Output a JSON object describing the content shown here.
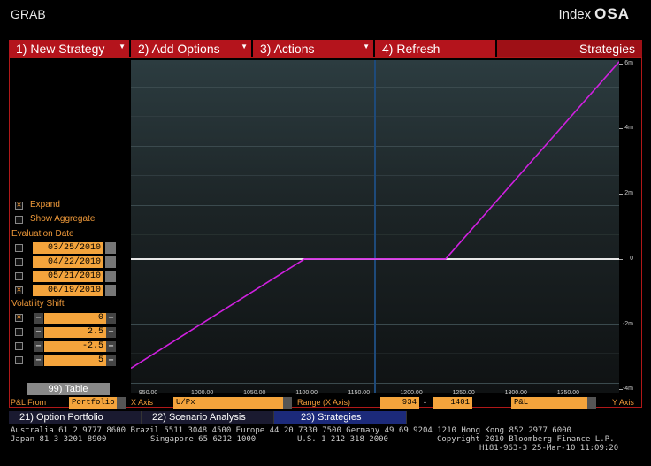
{
  "header": {
    "ticker": "GRAB",
    "index_label": "Index",
    "function_code": "OSA"
  },
  "menu": [
    {
      "label": "1)  New Strategy",
      "dropdown": true
    },
    {
      "label": "2)  Add Options",
      "dropdown": true
    },
    {
      "label": "3)  Actions",
      "dropdown": true
    },
    {
      "label": "4)  Refresh",
      "dropdown": false
    },
    {
      "label": "Strategies",
      "dropdown": false
    }
  ],
  "options": {
    "expand_label": "Expand",
    "expand_checked": true,
    "aggregate_label": "Show Aggregate",
    "aggregate_checked": false
  },
  "evaluation": {
    "title": "Evaluation Date",
    "dates": [
      {
        "value": "03/25/2010",
        "checked": false
      },
      {
        "value": "04/22/2010",
        "checked": false
      },
      {
        "value": "05/21/2010",
        "checked": false
      },
      {
        "value": "06/19/2010",
        "checked": true
      }
    ]
  },
  "volatility": {
    "title": "Volatility Shift",
    "shifts": [
      {
        "value": "0",
        "checked": true
      },
      {
        "value": "2.5",
        "checked": false
      },
      {
        "value": "-2.5",
        "checked": false
      },
      {
        "value": "5",
        "checked": false
      }
    ]
  },
  "table_button": "99) Table",
  "bottom": {
    "pl_from_label": "P&L From",
    "pl_from_value": "Portfolio",
    "xaxis_label": "X Axis",
    "xaxis_value": "U/Px",
    "range_label": "Range (X Axis)",
    "range_min": "934",
    "range_sep": "-",
    "range_max": "1401",
    "yaxis_value": "P&L",
    "yaxis_label": "Y Axis"
  },
  "tabs": [
    {
      "label": "21) Option Portfolio",
      "active": false
    },
    {
      "label": "22) Scenario Analysis",
      "active": false
    },
    {
      "label": "23) Strategies",
      "active": true
    }
  ],
  "footer": {
    "line1": "Australia 61 2 9777 8600 Brazil 5511 3048 4500 Europe 44 20 7330 7500 Germany 49 69 9204 1210 Hong Kong 852 2977 6000",
    "line2a": "Japan 81 3 3201 8900",
    "line2b": "Singapore 65 6212 1000",
    "line2c": "U.S. 1 212 318 2000",
    "line2d": "Copyright 2010 Bloomberg Finance L.P.",
    "line3": "H181-963-3 25-Mar-10 11:09:20"
  },
  "chart_data": {
    "type": "line",
    "title": "",
    "xlabel": "U/Px",
    "ylabel": "P&L",
    "xlim": [
      934,
      1401
    ],
    "ylim": [
      -4.1,
      6.1
    ],
    "x_ticks": [
      "950.00",
      "1000.00",
      "1050.00",
      "1100.00",
      "1150.00",
      "1200.00",
      "1250.00",
      "1300.00",
      "1350.00"
    ],
    "y_ticks": [
      "6m",
      "4m",
      "2m",
      "0",
      "-2m",
      "-4m"
    ],
    "series": [
      {
        "x": [
          934,
          1100,
          1235,
          1401
        ],
        "y": [
          -3.35,
          0,
          0,
          6.05
        ],
        "color": "#d020e0"
      }
    ],
    "current_price": 1167,
    "zero_line": 0,
    "grid": true
  }
}
